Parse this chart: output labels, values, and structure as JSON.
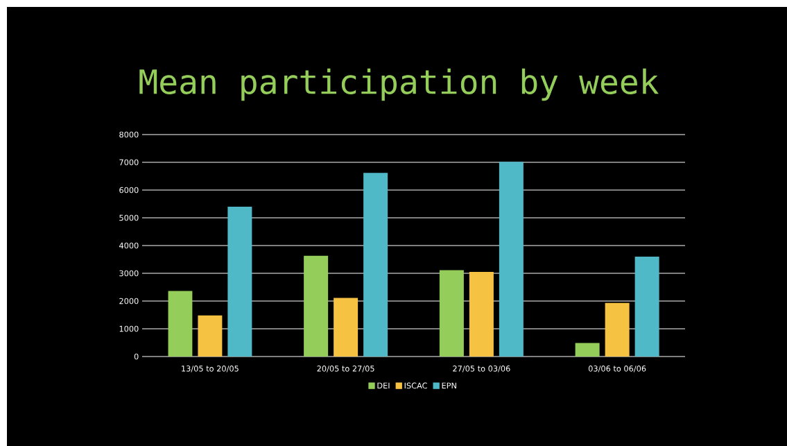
{
  "chart_data": {
    "type": "bar",
    "title": "Mean participation by week",
    "categories": [
      "13/05 to 20/05",
      "20/05 to 27/05",
      "27/05 to 03/06",
      "03/06 to 06/06"
    ],
    "series": [
      {
        "name": "DEI",
        "color": "#94cd59",
        "values": [
          2360,
          3630,
          3110,
          490
        ]
      },
      {
        "name": "ISCAC",
        "color": "#f5c242",
        "values": [
          1480,
          2110,
          3050,
          1930
        ]
      },
      {
        "name": "EPN",
        "color": "#4fb9c8",
        "values": [
          5400,
          6620,
          7020,
          3600
        ]
      }
    ],
    "ylim": [
      0,
      8000
    ],
    "yticks": [
      0,
      1000,
      2000,
      3000,
      4000,
      5000,
      6000,
      7000,
      8000
    ],
    "grid": "y",
    "legend": "bottom"
  }
}
